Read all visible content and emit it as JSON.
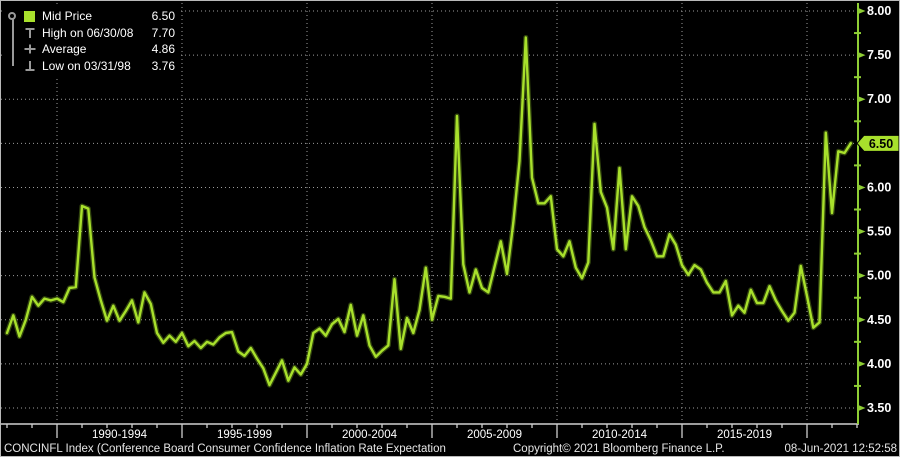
{
  "window": {
    "title": "Bloomberg chart - CONCINFL Index",
    "background": "#000000"
  },
  "legend": {
    "rows": [
      {
        "label": "Mid Price",
        "value": "6.50",
        "icon": "mid-price-swatch"
      },
      {
        "label": "High on 06/30/08",
        "value": "7.70",
        "icon": "high-whisker"
      },
      {
        "label": "Average",
        "value": "4.86",
        "icon": "average-marker"
      },
      {
        "label": "Low on 03/31/98",
        "value": "3.76",
        "icon": "low-whisker"
      }
    ]
  },
  "footer": {
    "left": "CONCINFL Index (Conference Board Consumer Confidence Inflation Rate Expectation",
    "center": "Copyright© 2021 Bloomberg Finance L.P.",
    "right": "08-Jun-2021 12:52:58"
  },
  "chart_data": {
    "type": "line",
    "title": "CONCINFL Index (Conference Board Consumer Confidence Inflation Rate Expectation)",
    "legend_position": "top-left",
    "grid": "dotted",
    "x_start": 1987.75,
    "x_step": 0.25,
    "series": [
      {
        "name": "Mid Price",
        "values": [
          4.35,
          4.55,
          4.31,
          4.5,
          4.76,
          4.66,
          4.74,
          4.72,
          4.74,
          4.7,
          4.86,
          4.87,
          5.79,
          5.76,
          4.98,
          4.72,
          4.49,
          4.66,
          4.49,
          4.6,
          4.72,
          4.47,
          4.81,
          4.68,
          4.35,
          4.24,
          4.32,
          4.25,
          4.35,
          4.2,
          4.26,
          4.18,
          4.25,
          4.22,
          4.3,
          4.35,
          4.36,
          4.14,
          4.09,
          4.18,
          4.06,
          3.95,
          3.76,
          3.9,
          4.04,
          3.81,
          3.96,
          3.88,
          4.0,
          4.35,
          4.4,
          4.32,
          4.45,
          4.51,
          4.36,
          4.67,
          4.32,
          4.55,
          4.21,
          4.08,
          4.15,
          4.21,
          4.96,
          4.17,
          4.52,
          4.35,
          4.61,
          5.09,
          4.5,
          4.77,
          4.76,
          4.74,
          6.81,
          5.13,
          4.81,
          5.07,
          4.86,
          4.81,
          5.1,
          5.39,
          5.02,
          5.6,
          6.3,
          7.7,
          6.11,
          5.82,
          5.82,
          5.9,
          5.3,
          5.22,
          5.39,
          5.09,
          4.97,
          5.15,
          6.72,
          5.95,
          5.77,
          5.3,
          6.22,
          5.3,
          5.9,
          5.79,
          5.55,
          5.4,
          5.22,
          5.22,
          5.47,
          5.35,
          5.12,
          5.01,
          5.12,
          5.07,
          4.92,
          4.81,
          4.81,
          4.94,
          4.55,
          4.66,
          4.58,
          4.84,
          4.69,
          4.69,
          4.88,
          4.72,
          4.6,
          4.49,
          4.58,
          5.11,
          4.77,
          4.41,
          4.47,
          6.62,
          5.71,
          6.41,
          6.39,
          6.5
        ]
      }
    ],
    "stats": {
      "mid": 6.5,
      "high": 7.7,
      "high_date": "06/30/08",
      "average": 4.86,
      "low": 3.76,
      "low_date": "03/31/98"
    },
    "last_price": "6.50",
    "x_axis": {
      "major_years": [
        1990,
        1995,
        2000,
        2005,
        2010,
        2015,
        2020
      ],
      "minor_year_start": 1988,
      "minor_year_end": 2022,
      "label_spans": [
        {
          "text": "1990-1994",
          "center": 1992.5
        },
        {
          "text": "1995-1999",
          "center": 1997.5
        },
        {
          "text": "2000-2004",
          "center": 2002.5
        },
        {
          "text": "2005-2009",
          "center": 2007.5
        },
        {
          "text": "2010-2014",
          "center": 2012.5
        },
        {
          "text": "2015-2019",
          "center": 2017.5
        }
      ]
    },
    "y_axis": {
      "min": 3.5,
      "max": 8.0,
      "major_step": 0.5,
      "minor_step": 0.25,
      "side": "right"
    }
  },
  "colors": {
    "line": "#a8e02c",
    "line_glow": "#6f9c1d",
    "axis_green": "#8fce35",
    "marker_bg": "#a8e02c",
    "marker_text": "#000000",
    "grid": "#9b9b9b",
    "x_axis_line": "#cfcfcf",
    "label": "#ffffff",
    "whisker": "#9a9a9a"
  }
}
